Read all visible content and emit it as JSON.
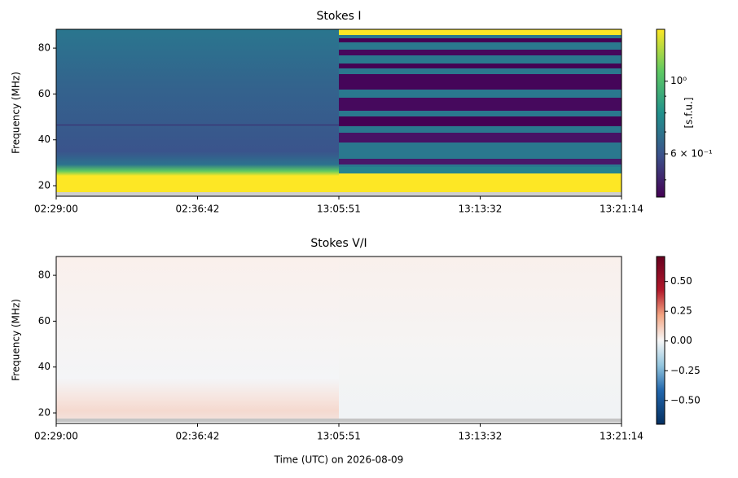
{
  "chart_data": [
    {
      "type": "heatmap",
      "title": "Stokes I",
      "ylabel": "Frequency (MHz)",
      "categories": [
        "02:29:00",
        "02:36:42",
        "13:05:51",
        "13:13:32",
        "13:21:14"
      ],
      "ylim": [
        15.4,
        88.2
      ],
      "yticks": [
        20,
        40,
        60,
        80
      ],
      "colorbar": {
        "label": "[s.f.u.]",
        "scale": "log",
        "colormap": "viridis",
        "lim": [
          0.443,
          1.44
        ],
        "ticks": [
          {
            "value": 1,
            "label": "10⁰"
          },
          {
            "value": 0.6,
            "label": "6 × 10⁻¹"
          }
        ],
        "minor_ticks": [
          0.5,
          0.7,
          0.8,
          0.9
        ]
      }
    },
    {
      "type": "heatmap",
      "title": "Stokes V/I",
      "ylabel": "Frequency (MHz)",
      "xlabel": "Time (UTC) on 2026-08-09",
      "categories": [
        "02:29:00",
        "02:36:42",
        "13:05:51",
        "13:13:32",
        "13:21:14"
      ],
      "ylim": [
        15.4,
        88.2
      ],
      "yticks": [
        20,
        40,
        60,
        80
      ],
      "colorbar": {
        "scale": "linear",
        "colormap": "rdbu",
        "lim": [
          -0.7,
          0.71
        ],
        "ticks": [
          {
            "value": 0.5,
            "label": "0.50"
          },
          {
            "value": 0.25,
            "label": "0.25"
          },
          {
            "value": 0,
            "label": "0.00"
          },
          {
            "value": -0.25,
            "label": "−0.25"
          },
          {
            "value": -0.5,
            "label": "−0.50"
          }
        ]
      }
    }
  ]
}
